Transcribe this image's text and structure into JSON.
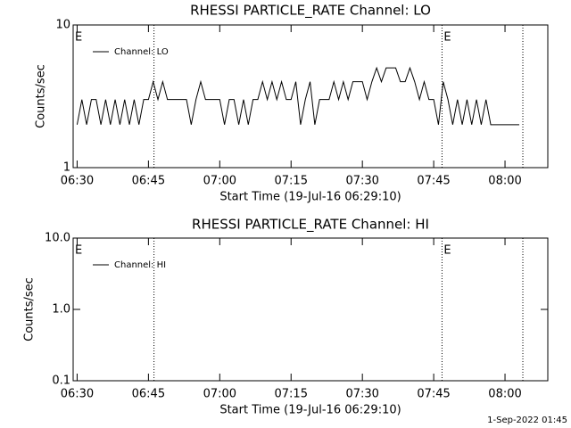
{
  "chart_data": [
    {
      "type": "line",
      "title": "RHESSI PARTICLE_RATE Channel: LO",
      "xlabel": "Start Time (19-Jul-16 06:29:10)",
      "ylabel": "Counts/sec",
      "log_y": true,
      "ylim": [
        1,
        10
      ],
      "yticks": [
        1,
        10
      ],
      "xlim": [
        "06:29:10",
        "08:09:00"
      ],
      "xticks": [
        "06:30",
        "06:45",
        "07:00",
        "07:15",
        "07:30",
        "07:45",
        "08:00"
      ],
      "vlines": [
        "06:46:10",
        "07:46:45",
        "08:03:45"
      ],
      "annotations": [
        {
          "text": "E",
          "x": "06:29:10"
        },
        {
          "text": "E",
          "x": "07:46:45"
        }
      ],
      "legend": "upper left",
      "x": [
        "06:30",
        "06:31",
        "06:32",
        "06:33",
        "06:34",
        "06:35",
        "06:36",
        "06:37",
        "06:38",
        "06:39",
        "06:40",
        "06:41",
        "06:42",
        "06:43",
        "06:44",
        "06:45",
        "06:46",
        "06:47",
        "06:48",
        "06:49",
        "06:50",
        "06:51",
        "06:52",
        "06:53",
        "06:54",
        "06:55",
        "06:56",
        "06:57",
        "06:58",
        "06:59",
        "07:00",
        "07:01",
        "07:02",
        "07:03",
        "07:04",
        "07:05",
        "07:06",
        "07:07",
        "07:08",
        "07:09",
        "07:10",
        "07:11",
        "07:12",
        "07:13",
        "07:14",
        "07:15",
        "07:16",
        "07:17",
        "07:18",
        "07:19",
        "07:20",
        "07:21",
        "07:22",
        "07:23",
        "07:24",
        "07:25",
        "07:26",
        "07:27",
        "07:28",
        "07:29",
        "07:30",
        "07:31",
        "07:32",
        "07:33",
        "07:34",
        "07:35",
        "07:36",
        "07:37",
        "07:38",
        "07:39",
        "07:40",
        "07:41",
        "07:42",
        "07:43",
        "07:44",
        "07:45",
        "07:46",
        "07:47",
        "07:48",
        "07:49",
        "07:50",
        "07:51",
        "07:52",
        "07:53",
        "07:54",
        "07:55",
        "07:56",
        "07:57",
        "07:58",
        "07:59",
        "08:00",
        "08:01",
        "08:02",
        "08:03"
      ],
      "series": [
        {
          "name": "Channel: LO",
          "color": "#000000",
          "values": [
            2,
            3,
            2,
            3,
            3,
            2,
            3,
            2,
            3,
            2,
            3,
            2,
            3,
            2,
            3,
            3,
            4,
            3,
            4,
            3,
            3,
            3,
            3,
            3,
            2,
            3,
            4,
            3,
            3,
            3,
            3,
            2,
            3,
            3,
            2,
            3,
            2,
            3,
            3,
            4,
            3,
            4,
            3,
            4,
            3,
            3,
            4,
            2,
            3,
            4,
            2,
            3,
            3,
            3,
            4,
            3,
            4,
            3,
            4,
            4,
            4,
            3,
            4,
            5,
            4,
            5,
            5,
            5,
            4,
            4,
            5,
            4,
            3,
            4,
            3,
            3,
            2,
            4,
            3,
            2,
            3,
            2,
            3,
            2,
            3,
            2,
            3,
            2,
            2,
            2,
            2,
            2,
            2,
            2
          ]
        }
      ]
    },
    {
      "type": "line",
      "title": "RHESSI PARTICLE_RATE Channel: HI",
      "xlabel": "Start Time (19-Jul-16 06:29:10)",
      "ylabel": "Counts/sec",
      "log_y": true,
      "ylim": [
        0.1,
        10
      ],
      "yticks": [
        {
          "value": 0.1,
          "label": "0.1"
        },
        {
          "value": 1,
          "label": "1.0"
        },
        {
          "value": 10,
          "label": "10.0"
        }
      ],
      "xlim": [
        "06:29:10",
        "08:09:00"
      ],
      "xticks": [
        "06:30",
        "06:45",
        "07:00",
        "07:15",
        "07:30",
        "07:45",
        "08:00"
      ],
      "vlines": [
        "06:46:10",
        "07:46:45",
        "08:03:45"
      ],
      "annotations": [
        {
          "text": "E",
          "x": "06:29:10"
        },
        {
          "text": "E",
          "x": "07:46:45"
        }
      ],
      "legend": "upper left",
      "x": [],
      "series": [
        {
          "name": "Channel: HI",
          "color": "#000000",
          "values": []
        }
      ]
    }
  ],
  "footer": "1-Sep-2022 01:45"
}
